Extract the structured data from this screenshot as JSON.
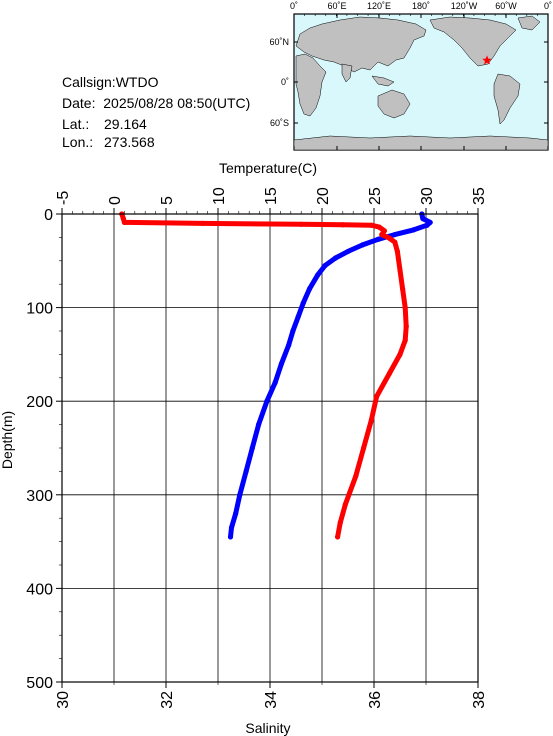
{
  "station": {
    "callsign": "Callsign:WTDO",
    "date": "Date:  2025/08/28 08:50(UTC)",
    "lat_label": "Lat.:",
    "lat_value": "29.164",
    "lon_label": "Lon.:",
    "lon_value": "273.568"
  },
  "map": {
    "top_labels": [
      "0˚",
      "60˚E",
      "120˚E",
      "180˚",
      "120˚W",
      "60˚W",
      "0˚"
    ],
    "left_labels": [
      "60˚N",
      "0˚",
      "60˚S"
    ],
    "ocean_color": "#d8f8fc",
    "land_color": "#c0c0c0",
    "marker_color": "#ff0000",
    "marker_lon": 273.568,
    "marker_lat": 29.164
  },
  "chart_data": {
    "type": "line",
    "title": "",
    "x_top_label": "Temperature(C)",
    "x_bottom_label": "Salinity",
    "y_label": "Depth(m)",
    "temperature_ticks": [
      "-5",
      "0",
      "5",
      "10",
      "15",
      "20",
      "25",
      "30",
      "35"
    ],
    "salinity_ticks": [
      "30",
      "32",
      "34",
      "36",
      "38"
    ],
    "depth_ticks": [
      "0",
      "100",
      "200",
      "300",
      "400",
      "500"
    ],
    "temperature_range": [
      -5,
      35
    ],
    "salinity_range": [
      30,
      38
    ],
    "depth_range": [
      0,
      500
    ],
    "grid": true,
    "series": [
      {
        "variable": "temperature",
        "color": "#0000ff",
        "points": [
          {
            "depth": 0,
            "value": 29.6
          },
          {
            "depth": 5,
            "value": 29.7
          },
          {
            "depth": 9,
            "value": 30.4
          },
          {
            "depth": 12,
            "value": 30.1
          },
          {
            "depth": 17,
            "value": 28.8
          },
          {
            "depth": 22,
            "value": 27.0
          },
          {
            "depth": 27,
            "value": 25.4
          },
          {
            "depth": 33,
            "value": 23.9
          },
          {
            "depth": 40,
            "value": 22.5
          },
          {
            "depth": 47,
            "value": 21.3
          },
          {
            "depth": 55,
            "value": 20.3
          },
          {
            "depth": 65,
            "value": 19.6
          },
          {
            "depth": 80,
            "value": 18.8
          },
          {
            "depth": 95,
            "value": 18.2
          },
          {
            "depth": 110,
            "value": 17.7
          },
          {
            "depth": 125,
            "value": 17.2
          },
          {
            "depth": 140,
            "value": 16.8
          },
          {
            "depth": 160,
            "value": 16.1
          },
          {
            "depth": 180,
            "value": 15.5
          },
          {
            "depth": 200,
            "value": 14.7
          },
          {
            "depth": 225,
            "value": 13.9
          },
          {
            "depth": 250,
            "value": 13.3
          },
          {
            "depth": 275,
            "value": 12.7
          },
          {
            "depth": 300,
            "value": 12.1
          },
          {
            "depth": 320,
            "value": 11.7
          },
          {
            "depth": 335,
            "value": 11.3
          },
          {
            "depth": 345,
            "value": 11.2
          }
        ]
      },
      {
        "variable": "salinity",
        "color": "#ff0000",
        "points": [
          {
            "depth": 0,
            "value": 31.15
          },
          {
            "depth": 5,
            "value": 31.18
          },
          {
            "depth": 9,
            "value": 31.2
          },
          {
            "depth": 10,
            "value": 32.7
          },
          {
            "depth": 11,
            "value": 34.6
          },
          {
            "depth": 11.5,
            "value": 35.4
          },
          {
            "depth": 12,
            "value": 35.95
          },
          {
            "depth": 14,
            "value": 36.1
          },
          {
            "depth": 18,
            "value": 36.2
          },
          {
            "depth": 22,
            "value": 36.15
          },
          {
            "depth": 26,
            "value": 36.3
          },
          {
            "depth": 30,
            "value": 36.4
          },
          {
            "depth": 40,
            "value": 36.45
          },
          {
            "depth": 60,
            "value": 36.5
          },
          {
            "depth": 80,
            "value": 36.55
          },
          {
            "depth": 100,
            "value": 36.6
          },
          {
            "depth": 120,
            "value": 36.62
          },
          {
            "depth": 135,
            "value": 36.6
          },
          {
            "depth": 150,
            "value": 36.5
          },
          {
            "depth": 170,
            "value": 36.3
          },
          {
            "depth": 195,
            "value": 36.05
          },
          {
            "depth": 220,
            "value": 35.95
          },
          {
            "depth": 250,
            "value": 35.8
          },
          {
            "depth": 280,
            "value": 35.65
          },
          {
            "depth": 310,
            "value": 35.45
          },
          {
            "depth": 330,
            "value": 35.35
          },
          {
            "depth": 345,
            "value": 35.3
          }
        ]
      }
    ]
  }
}
